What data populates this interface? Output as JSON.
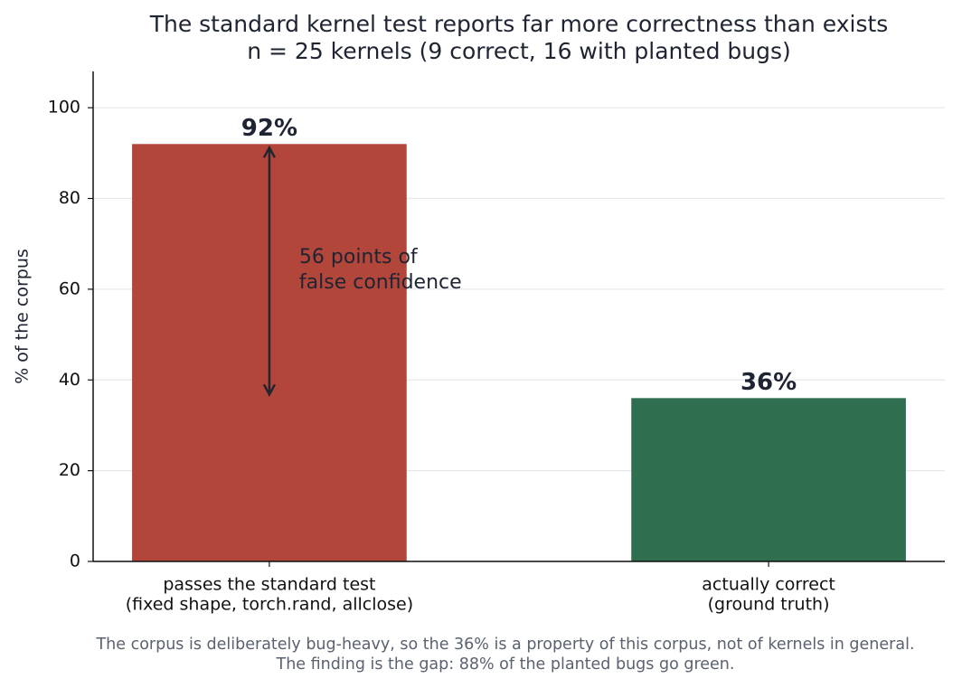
{
  "chart_data": {
    "type": "bar",
    "title": "The standard kernel test reports far more correctness than exists",
    "subtitle": "n = 25 kernels (9 correct, 16 with planted bugs)",
    "ylabel": "% of the corpus",
    "categories": [
      [
        "passes the standard test",
        "(fixed shape, torch.rand, allclose)"
      ],
      [
        "actually correct",
        "(ground truth)"
      ]
    ],
    "values": [
      92,
      36
    ],
    "value_labels": [
      "92%",
      "36%"
    ],
    "colors": [
      "#b3463b",
      "#2f6f4f"
    ],
    "ylim": [
      0,
      108
    ],
    "yticks": [
      0,
      20,
      40,
      60,
      80,
      100
    ],
    "grid": true,
    "annotation": [
      "56 points of",
      "false confidence"
    ],
    "footnote": [
      "The corpus is deliberately bug-heavy, so the 36% is a property of this corpus, not of kernels in general.",
      "The finding is the gap: 88% of the planted bugs go green."
    ]
  }
}
